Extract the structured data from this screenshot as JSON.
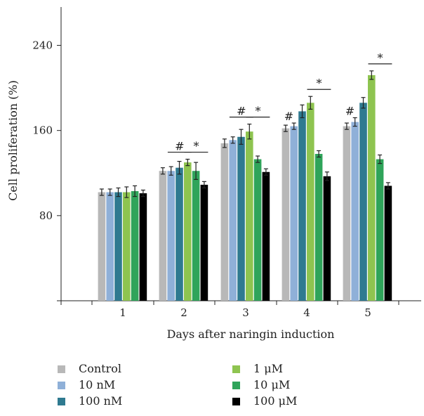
{
  "chart_data": {
    "type": "bar",
    "xlabel": "Days after naringin induction",
    "ylabel": "Cell proliferation (%)",
    "ylim": [
      0,
      276
    ],
    "yticks": [
      80,
      160,
      240
    ],
    "categories": [
      "1",
      "2",
      "3",
      "4",
      "5"
    ],
    "grid": false,
    "legend_position": "bottom",
    "series": [
      {
        "name": "Control",
        "color": "#b8b8b8",
        "values": [
          102,
          122,
          148,
          162,
          164
        ],
        "errors": [
          3,
          3,
          4,
          3,
          3
        ]
      },
      {
        "name": "10 nM",
        "color": "#8fb0d8",
        "values": [
          102,
          122,
          151,
          164,
          168
        ],
        "errors": [
          3,
          4,
          3,
          3,
          4
        ]
      },
      {
        "name": "100 nM",
        "color": "#2f7a90",
        "values": [
          102,
          125,
          154,
          178,
          186
        ],
        "errors": [
          4,
          6,
          7,
          6,
          5
        ]
      },
      {
        "name": "1 μM",
        "color": "#8ec450",
        "values": [
          102,
          130,
          159,
          186,
          212
        ],
        "errors": [
          5,
          3,
          7,
          6,
          4
        ]
      },
      {
        "name": "10 μM",
        "color": "#2fa45a",
        "values": [
          103,
          122,
          133,
          138,
          133
        ],
        "errors": [
          5,
          8,
          3,
          3,
          4
        ]
      },
      {
        "name": "100 μM",
        "color": "#000000",
        "values": [
          101,
          109,
          121,
          117,
          108
        ],
        "errors": [
          3,
          3,
          3,
          4,
          3
        ]
      }
    ],
    "annotations": [
      {
        "text": "#",
        "day": "2",
        "type": "bracket",
        "from": 1,
        "to": 3
      },
      {
        "text": "*",
        "day": "2",
        "type": "bracket",
        "from": 3,
        "to": 5
      },
      {
        "text": "#",
        "day": "3",
        "type": "bracket",
        "from": 1,
        "to": 3
      },
      {
        "text": "*",
        "day": "3",
        "type": "bracket",
        "from": 3,
        "to": 5
      },
      {
        "text": "#",
        "day": "4",
        "type": "mark",
        "series": 1
      },
      {
        "text": "*",
        "day": "4",
        "type": "bracket",
        "from": 3,
        "to": 5
      },
      {
        "text": "#",
        "day": "5",
        "type": "mark",
        "series": 1
      },
      {
        "text": "*",
        "day": "5",
        "type": "bracket",
        "from": 3,
        "to": 5
      }
    ]
  }
}
